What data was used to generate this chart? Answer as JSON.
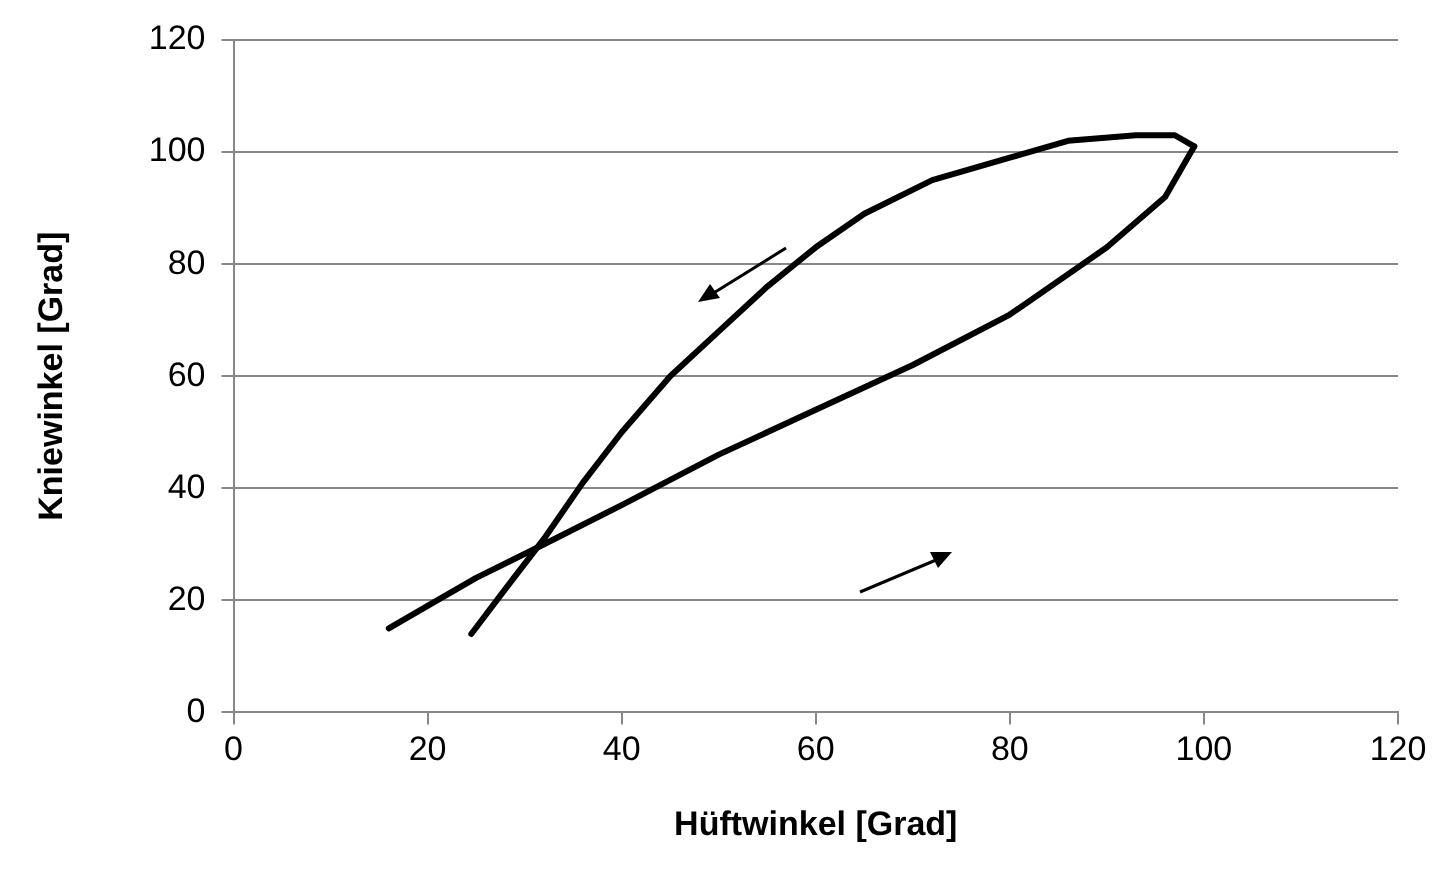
{
  "chart_data": {
    "type": "line",
    "xlabel": "Hüftwinkel [Grad]",
    "ylabel": "Kniewinkel [Grad]",
    "series": [
      {
        "color": "#000000",
        "x": [
          16,
          20,
          25,
          32,
          40,
          50,
          60,
          70,
          80,
          90,
          96,
          98,
          99
        ],
        "values": [
          15,
          19,
          24,
          30,
          37,
          46,
          54,
          62,
          71,
          83,
          92,
          98,
          101
        ]
      },
      {
        "color": "#000000",
        "x": [
          99,
          97,
          93,
          86,
          80,
          72,
          65,
          60,
          55,
          50,
          45,
          40,
          36,
          32,
          28,
          24.5
        ],
        "values": [
          101,
          103,
          103,
          102,
          99,
          95,
          89,
          83,
          76,
          68,
          60,
          50,
          41,
          31,
          22,
          14
        ]
      }
    ],
    "xlim": [
      0,
      120
    ],
    "xticks": [
      0,
      20,
      40,
      60,
      80,
      100,
      120
    ],
    "ylim": [
      0,
      120
    ],
    "yticks": [
      0,
      20,
      40,
      60,
      80,
      100,
      120
    ],
    "grid": "y",
    "legend": false,
    "marker": "none",
    "line_style": "solid"
  }
}
